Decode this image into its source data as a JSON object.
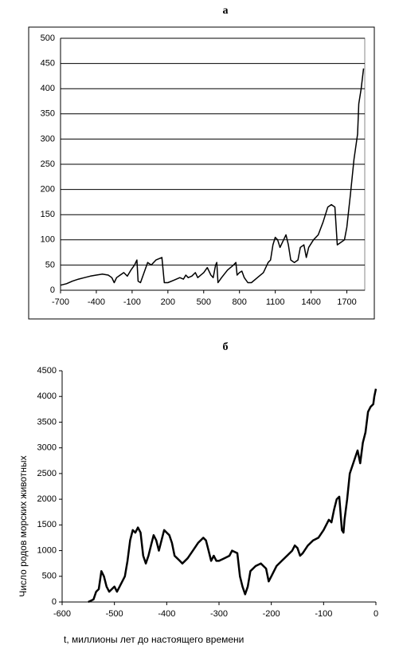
{
  "chart_data": [
    {
      "type": "line",
      "title": "а",
      "x": [
        -700,
        -650,
        -600,
        -550,
        -500,
        -450,
        -400,
        -350,
        -300,
        -270,
        -250,
        -230,
        -200,
        -170,
        -140,
        -110,
        -80,
        -60,
        -50,
        -30,
        0,
        30,
        60,
        100,
        150,
        170,
        200,
        250,
        300,
        330,
        350,
        370,
        400,
        430,
        450,
        500,
        530,
        560,
        580,
        600,
        610,
        620,
        650,
        700,
        750,
        770,
        780,
        800,
        820,
        840,
        870,
        900,
        950,
        1000,
        1040,
        1060,
        1080,
        1100,
        1120,
        1140,
        1170,
        1190,
        1210,
        1230,
        1260,
        1290,
        1310,
        1340,
        1360,
        1380,
        1420,
        1460,
        1500,
        1540,
        1570,
        1600,
        1620,
        1650,
        1680,
        1700,
        1730,
        1760,
        1790,
        1800,
        1820,
        1840
      ],
      "series": [
        {
          "color": "#000000",
          "values": [
            10,
            13,
            18,
            22,
            25,
            28,
            30,
            32,
            30,
            25,
            15,
            25,
            30,
            35,
            28,
            40,
            50,
            60,
            18,
            15,
            35,
            55,
            50,
            60,
            65,
            15,
            15,
            20,
            25,
            22,
            30,
            25,
            28,
            35,
            25,
            35,
            45,
            30,
            25,
            50,
            55,
            15,
            25,
            40,
            50,
            55,
            30,
            35,
            38,
            25,
            15,
            15,
            25,
            35,
            55,
            60,
            90,
            105,
            100,
            85,
            100,
            110,
            90,
            60,
            55,
            60,
            85,
            90,
            65,
            85,
            100,
            110,
            135,
            165,
            170,
            165,
            90,
            95,
            100,
            125,
            190,
            260,
            310,
            370,
            400,
            440
          ]
        }
      ],
      "xlim": [
        -700,
        1850
      ],
      "xticks": [
        -700,
        -400,
        -100,
        200,
        500,
        800,
        1100,
        1400,
        1700
      ],
      "ylim": [
        0,
        500
      ],
      "yticks": [
        0,
        50,
        100,
        150,
        200,
        250,
        300,
        350,
        400,
        450,
        500
      ],
      "grid": true
    },
    {
      "type": "line",
      "title": "б",
      "x_label": "t, миллионы лет до настоящего времени",
      "y_label": "Число родов морских животных",
      "x": [
        -550,
        -540,
        -535,
        -530,
        -525,
        -520,
        -515,
        -510,
        -505,
        -500,
        -495,
        -490,
        -480,
        -475,
        -470,
        -465,
        -460,
        -455,
        -450,
        -445,
        -440,
        -435,
        -430,
        -425,
        -420,
        -415,
        -410,
        -405,
        -400,
        -395,
        -390,
        -385,
        -380,
        -375,
        -370,
        -360,
        -350,
        -340,
        -330,
        -325,
        -320,
        -315,
        -310,
        -305,
        -300,
        -290,
        -280,
        -275,
        -265,
        -260,
        -255,
        -250,
        -245,
        -240,
        -230,
        -220,
        -210,
        -205,
        -200,
        -190,
        -180,
        -170,
        -160,
        -155,
        -150,
        -145,
        -140,
        -130,
        -120,
        -110,
        -100,
        -90,
        -85,
        -80,
        -75,
        -70,
        -65,
        -62,
        -60,
        -55,
        -50,
        -40,
        -35,
        -30,
        -25,
        -20,
        -15,
        -10,
        -5,
        -3,
        0
      ],
      "series": [
        {
          "color": "#000000",
          "values": [
            0,
            50,
            200,
            250,
            600,
            500,
            300,
            200,
            250,
            300,
            200,
            300,
            500,
            800,
            1200,
            1400,
            1350,
            1450,
            1350,
            900,
            750,
            900,
            1100,
            1300,
            1200,
            1000,
            1200,
            1400,
            1350,
            1300,
            1150,
            900,
            850,
            800,
            750,
            850,
            1000,
            1150,
            1250,
            1200,
            1000,
            800,
            900,
            800,
            800,
            850,
            900,
            1000,
            950,
            500,
            300,
            150,
            300,
            600,
            700,
            750,
            650,
            400,
            500,
            700,
            800,
            900,
            1000,
            1100,
            1050,
            900,
            950,
            1100,
            1200,
            1250,
            1400,
            1600,
            1550,
            1800,
            2000,
            2050,
            1400,
            1350,
            1600,
            2000,
            2500,
            2800,
            2950,
            2700,
            3100,
            3300,
            3700,
            3800,
            3850,
            4000,
            4150
          ]
        }
      ],
      "xlim": [
        -600,
        0
      ],
      "xticks": [
        -600,
        -500,
        -400,
        -300,
        -200,
        -100,
        0
      ],
      "ylim": [
        0,
        4500
      ],
      "yticks": [
        0,
        500,
        1000,
        1500,
        2000,
        2500,
        3000,
        3500,
        4000,
        4500
      ],
      "grid": false
    }
  ]
}
